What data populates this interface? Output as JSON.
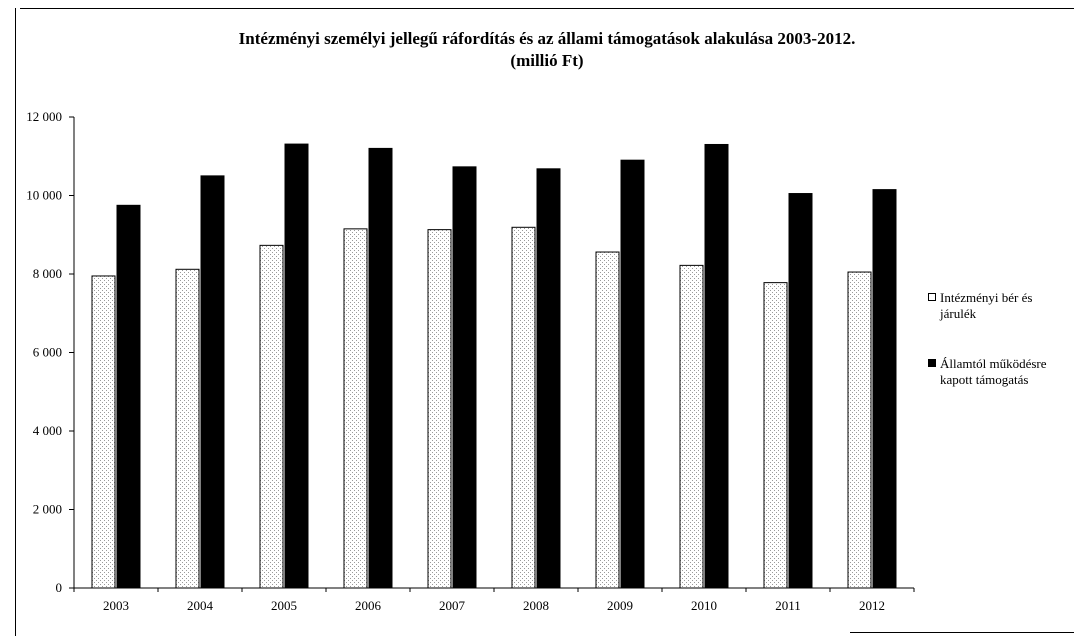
{
  "chart_data": {
    "type": "bar",
    "title": "Intézményi személyi jellegű ráfordítás és az állami támogatások alakulása 2003-2012.",
    "subtitle": "(millió Ft)",
    "categories": [
      "2003",
      "2004",
      "2005",
      "2006",
      "2007",
      "2008",
      "2009",
      "2010",
      "2011",
      "2012"
    ],
    "series": [
      {
        "name": "Intézményi bér és járulék",
        "color": "#f4f4f4",
        "values": [
          7950,
          8120,
          8730,
          9150,
          9130,
          9190,
          8560,
          8220,
          7780,
          8050
        ]
      },
      {
        "name": "Államtól működésre kapott támogatás",
        "color": "#000000",
        "values": [
          9750,
          10500,
          11310,
          11200,
          10730,
          10680,
          10900,
          11300,
          10050,
          10150
        ]
      }
    ],
    "ylim": [
      0,
      12000
    ],
    "yticks": [
      "0",
      "2 000",
      "4 000",
      "6 000",
      "8 000",
      "10 000",
      "12 000"
    ],
    "ytick_values": [
      0,
      2000,
      4000,
      6000,
      8000,
      10000,
      12000
    ],
    "grid": false,
    "legend": "right",
    "legend_labels": [
      "Intézményi bér és",
      "járulék",
      "Államtól működésre",
      "kapott támogatás"
    ]
  }
}
